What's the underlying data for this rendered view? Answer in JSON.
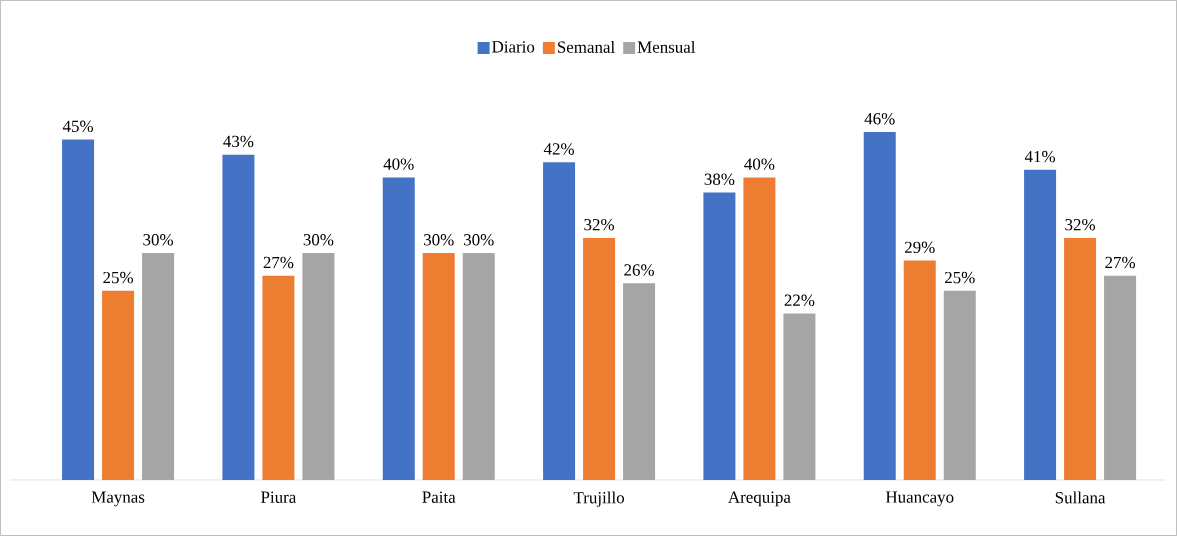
{
  "chart_data": {
    "type": "bar",
    "categories": [
      "Maynas",
      "Piura",
      "Paita",
      "Trujillo",
      "Arequipa",
      "Huancayo",
      "Sullana"
    ],
    "series": [
      {
        "name": "Diario",
        "color": "#4472c4",
        "values": [
          45,
          43,
          40,
          42,
          38,
          46,
          41
        ],
        "value_labels": [
          "45%",
          "43%",
          "40%",
          "42%",
          "38%",
          "46%",
          "41%"
        ]
      },
      {
        "name": "Semanal",
        "color": "#ed7d31",
        "values": [
          25,
          27,
          30,
          32,
          40,
          29,
          32
        ],
        "value_labels": [
          "25%",
          "27%",
          "30%",
          "32%",
          "40%",
          "29%",
          "32%"
        ]
      },
      {
        "name": "Mensual",
        "color": "#a5a5a5",
        "values": [
          30,
          30,
          30,
          26,
          22,
          25,
          27
        ],
        "value_labels": [
          "30%",
          "30%",
          "30%",
          "26%",
          "22%",
          "25%",
          "27%"
        ]
      }
    ],
    "legend": "top"
  }
}
